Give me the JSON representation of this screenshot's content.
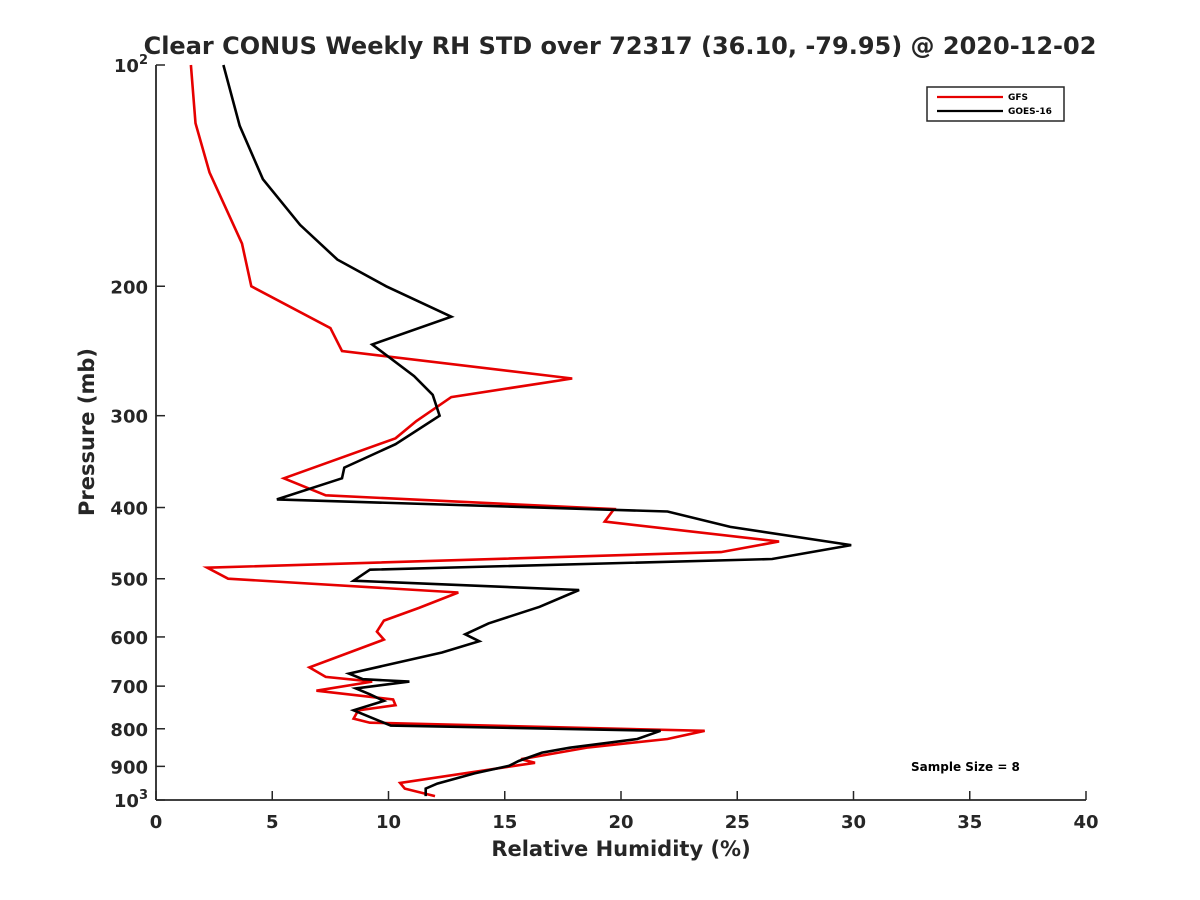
{
  "chart_data": {
    "type": "line",
    "title": "Clear CONUS Weekly RH STD over 72317 (36.10, -79.95) @ 2020-12-02",
    "xlabel": "Relative Humidity (%)",
    "ylabel": "Pressure (mb)",
    "xlim": [
      0,
      40
    ],
    "ylim": [
      100,
      1000
    ],
    "y_scale": "log",
    "y_reversed": true,
    "grid": false,
    "legend_position": "top-right",
    "x_ticks": [
      "0",
      "5",
      "10",
      "15",
      "20",
      "25",
      "30",
      "35",
      "40"
    ],
    "y_ticks": [
      {
        "value": 100,
        "label": "10",
        "sup": "2"
      },
      {
        "value": 200,
        "label": "200"
      },
      {
        "value": 300,
        "label": "300"
      },
      {
        "value": 400,
        "label": "400"
      },
      {
        "value": 500,
        "label": "500"
      },
      {
        "value": 600,
        "label": "600"
      },
      {
        "value": 700,
        "label": "700"
      },
      {
        "value": 800,
        "label": "800"
      },
      {
        "value": 900,
        "label": "900"
      },
      {
        "value": 1000,
        "label": "10",
        "sup": "3"
      }
    ],
    "annotation": "Sample Size = 8",
    "series": [
      {
        "name": "GFS",
        "color": "#e60000",
        "points": [
          [
            1.5,
            100
          ],
          [
            1.7,
            120
          ],
          [
            2.3,
            140
          ],
          [
            3.7,
            175
          ],
          [
            4.1,
            200
          ],
          [
            7.5,
            228
          ],
          [
            8.0,
            245
          ],
          [
            17.9,
            267
          ],
          [
            12.7,
            283
          ],
          [
            11.2,
            305
          ],
          [
            10.3,
            322
          ],
          [
            5.5,
            365
          ],
          [
            7.3,
            385
          ],
          [
            19.7,
            402
          ],
          [
            19.3,
            418
          ],
          [
            26.8,
            445
          ],
          [
            24.3,
            460
          ],
          [
            2.2,
            483
          ],
          [
            3.1,
            500
          ],
          [
            13.0,
            522
          ],
          [
            11.3,
            548
          ],
          [
            9.8,
            570
          ],
          [
            9.5,
            590
          ],
          [
            9.8,
            605
          ],
          [
            6.6,
            660
          ],
          [
            7.3,
            680
          ],
          [
            9.3,
            690
          ],
          [
            6.9,
            710
          ],
          [
            10.2,
            730
          ],
          [
            10.3,
            743
          ],
          [
            8.7,
            755
          ],
          [
            8.6,
            765
          ],
          [
            8.5,
            775
          ],
          [
            9.2,
            785
          ],
          [
            23.6,
            805
          ],
          [
            22.0,
            826
          ],
          [
            18.6,
            848
          ],
          [
            17.5,
            860
          ],
          [
            15.7,
            880
          ],
          [
            16.3,
            890
          ],
          [
            10.5,
            948
          ],
          [
            10.7,
            965
          ],
          [
            12.0,
            988
          ]
        ]
      },
      {
        "name": "GOES-16",
        "color": "#000000",
        "points": [
          [
            2.9,
            100
          ],
          [
            3.6,
            121
          ],
          [
            4.6,
            143
          ],
          [
            6.2,
            165
          ],
          [
            7.8,
            184
          ],
          [
            9.9,
            200
          ],
          [
            12.7,
            220
          ],
          [
            9.3,
            240
          ],
          [
            11.1,
            265
          ],
          [
            11.9,
            281
          ],
          [
            12.2,
            300
          ],
          [
            10.3,
            328
          ],
          [
            8.1,
            353
          ],
          [
            8.0,
            365
          ],
          [
            5.2,
            390
          ],
          [
            22.0,
            405
          ],
          [
            24.7,
            425
          ],
          [
            29.9,
            450
          ],
          [
            26.5,
            470
          ],
          [
            9.2,
            486
          ],
          [
            8.5,
            503
          ],
          [
            18.2,
            518
          ],
          [
            16.5,
            546
          ],
          [
            14.3,
            575
          ],
          [
            13.3,
            595
          ],
          [
            13.9,
            608
          ],
          [
            12.3,
            630
          ],
          [
            8.3,
            673
          ],
          [
            8.9,
            685
          ],
          [
            10.9,
            690
          ],
          [
            8.6,
            705
          ],
          [
            9.2,
            718
          ],
          [
            9.6,
            728
          ],
          [
            9.8,
            733
          ],
          [
            8.5,
            755
          ],
          [
            10.1,
            792
          ],
          [
            21.7,
            805
          ],
          [
            20.7,
            826
          ],
          [
            17.8,
            849
          ],
          [
            16.6,
            862
          ],
          [
            15.6,
            885
          ],
          [
            15.2,
            898
          ],
          [
            13.7,
            920
          ],
          [
            12.1,
            950
          ],
          [
            11.6,
            965
          ],
          [
            11.6,
            988
          ]
        ]
      }
    ]
  }
}
